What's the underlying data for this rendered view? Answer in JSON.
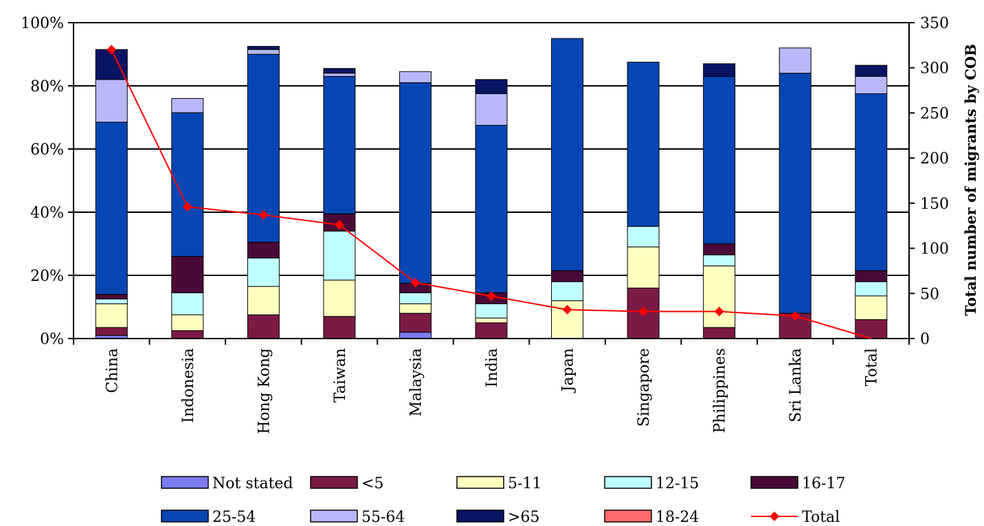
{
  "chart_data": {
    "type": "bar",
    "stacked": true,
    "categories": [
      "China",
      "Indonesia",
      "Hong Kong",
      "Taiwan",
      "Malaysia",
      "India",
      "Japan",
      "Singapore",
      "Philippines",
      "Sri Lanka",
      "Total"
    ],
    "series": [
      {
        "name": "Not stated",
        "color": "#7b7bef",
        "values": [
          1,
          0,
          0,
          0,
          2,
          0,
          0,
          0,
          0,
          0,
          0
        ]
      },
      {
        "name": "<5",
        "color": "#7b1a45",
        "values": [
          2.5,
          2.5,
          7.5,
          7,
          6,
          5,
          0,
          16,
          3.5,
          8,
          6
        ]
      },
      {
        "name": "5-11",
        "color": "#ffffc0",
        "values": [
          7.5,
          5,
          9,
          11.5,
          3,
          1.5,
          12,
          13,
          19.5,
          0,
          7.5
        ]
      },
      {
        "name": "12-15",
        "color": "#c0ffff",
        "values": [
          1.5,
          7,
          9,
          15.5,
          3.5,
          4.5,
          6,
          6.5,
          3.5,
          0,
          4.5
        ]
      },
      {
        "name": "16-17",
        "color": "#4a0a38",
        "values": [
          1.5,
          11.5,
          5,
          5.5,
          3,
          3.5,
          3.5,
          0,
          3.5,
          0,
          3.5
        ]
      },
      {
        "name": "18-24",
        "color": "#ff6b6b",
        "values": [
          0,
          0,
          0,
          0,
          0,
          0,
          0,
          0,
          0,
          0,
          0
        ]
      },
      {
        "name": "25-54",
        "color": "#0646b4",
        "values": [
          54.5,
          45.5,
          59.5,
          43.5,
          63.5,
          53,
          73.5,
          52,
          53,
          76,
          56
        ]
      },
      {
        "name": "55-64",
        "color": "#b8b8f8",
        "values": [
          13.5,
          4.5,
          1.5,
          1,
          3.5,
          10,
          0,
          0,
          0,
          8,
          5.5
        ]
      },
      {
        "name": ">65",
        "color": "#0a1464",
        "values": [
          9.5,
          0,
          1,
          1.5,
          0,
          4.5,
          0,
          0,
          4,
          0,
          3.5
        ]
      }
    ],
    "line": {
      "name": "Total",
      "color": "#ff0000",
      "values": [
        320,
        146,
        137,
        126,
        62,
        47,
        32,
        30,
        30,
        25,
        0
      ]
    },
    "ylim_left": [
      0,
      100
    ],
    "ylim_right": [
      0,
      350
    ],
    "left_ticks": [
      "0%",
      "20%",
      "40%",
      "60%",
      "80%",
      "100%"
    ],
    "right_ticks": [
      "0",
      "50",
      "100",
      "150",
      "200",
      "250",
      "300",
      "350"
    ],
    "y2label": "Total number of migrants by COB",
    "legend_order": [
      "Not stated",
      "<5",
      "5-11",
      "12-15",
      "16-17",
      "25-54",
      "55-64",
      ">65",
      "18-24",
      "Total"
    ],
    "legend_placement": "bottom",
    "grid": true
  }
}
